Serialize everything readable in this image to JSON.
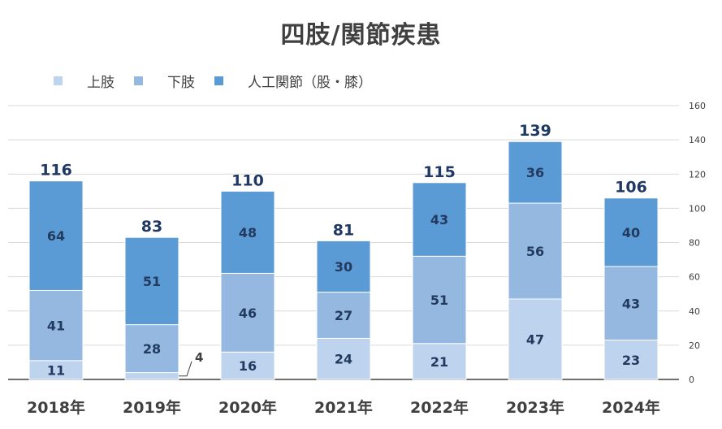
{
  "chart_data": {
    "type": "bar",
    "stacked": true,
    "title": "四肢/関節疾患",
    "categories": [
      "2018年",
      "2019年",
      "2020年",
      "2021年",
      "2022年",
      "2023年",
      "2024年"
    ],
    "series": [
      {
        "name": "上肢",
        "values": [
          11,
          4,
          16,
          24,
          21,
          47,
          23
        ],
        "color": "#bdd3ee"
      },
      {
        "name": "下肢",
        "values": [
          41,
          28,
          46,
          27,
          51,
          56,
          43
        ],
        "color": "#95b8e0"
      },
      {
        "name": "人工関節（股・膝）",
        "values": [
          64,
          51,
          48,
          30,
          43,
          36,
          40
        ],
        "color": "#5b9bd5"
      }
    ],
    "totals": [
      116,
      83,
      110,
      81,
      115,
      139,
      106
    ],
    "yticks": [
      0,
      20,
      40,
      60,
      80,
      100,
      120,
      140,
      160
    ],
    "ylim": [
      0,
      160
    ],
    "y_axis_side": "right",
    "grid": true,
    "legend_position": "top-left",
    "xlabel": "",
    "ylabel": ""
  }
}
